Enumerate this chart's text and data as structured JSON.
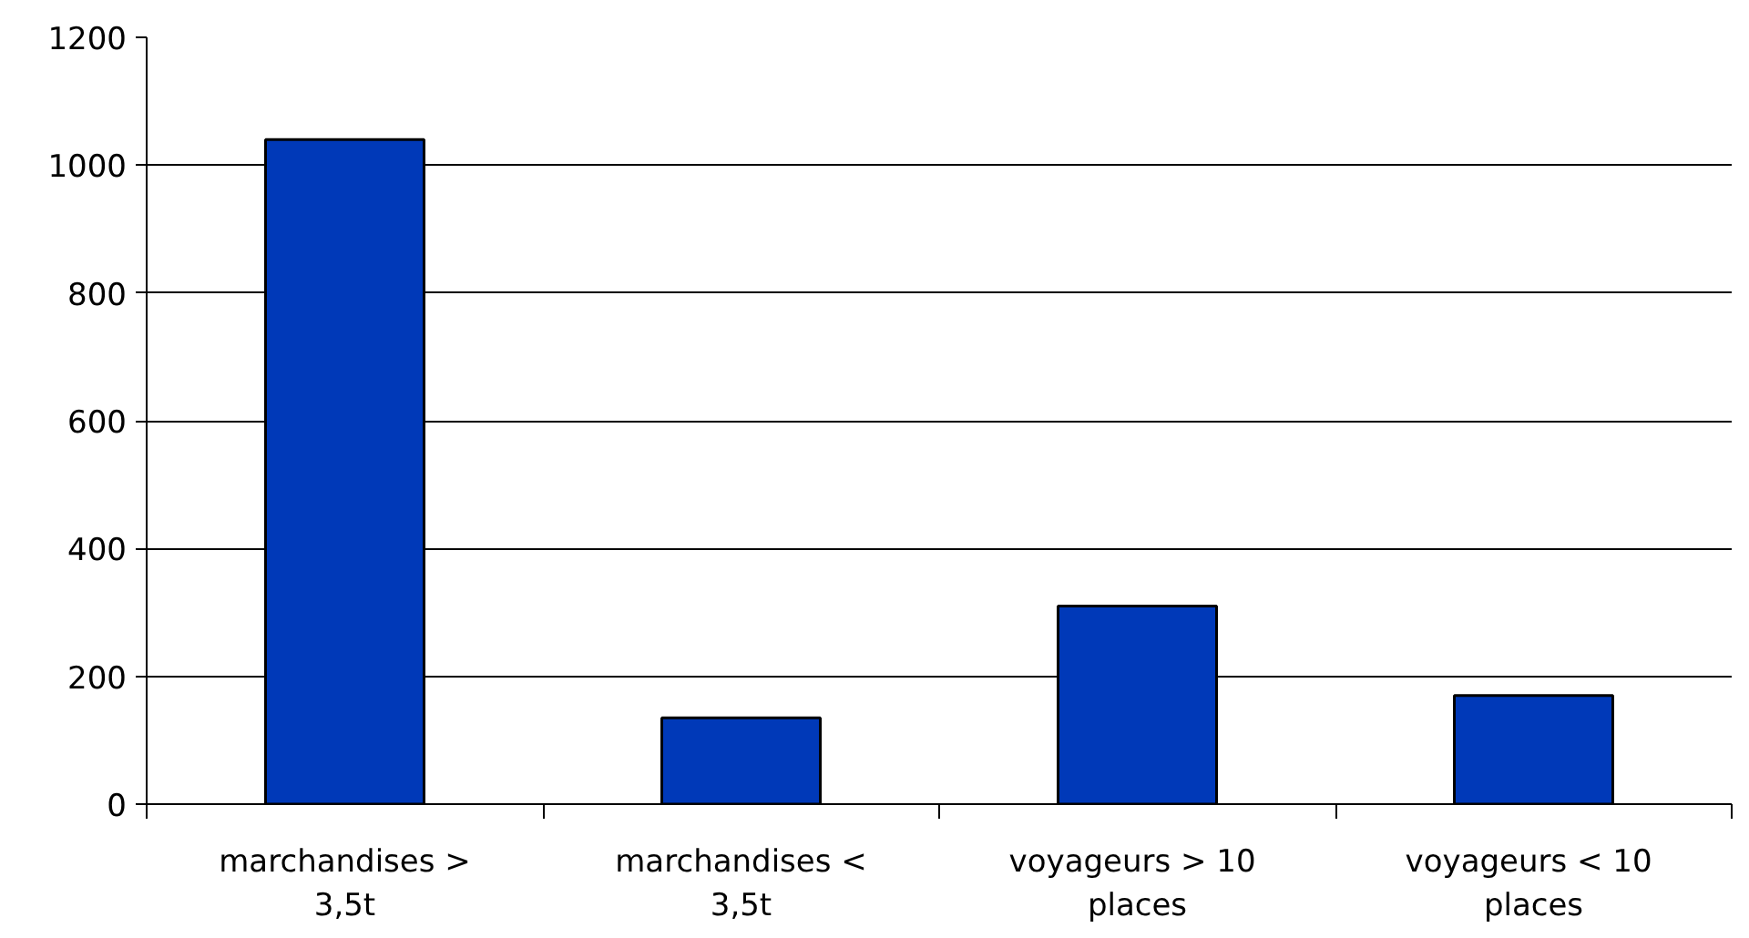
{
  "chart_data": {
    "type": "bar",
    "categories": [
      "marchandises >\n3,5t",
      "marchandises <\n3,5t",
      "voyageurs  > 10\nplaces",
      "voyageurs  < 10\nplaces"
    ],
    "values": [
      1040,
      135,
      310,
      170
    ],
    "color": "#0039b8",
    "ylim": [
      0,
      1200
    ],
    "yticks": [
      0,
      200,
      400,
      600,
      800,
      1000,
      1200
    ],
    "grid": "y"
  }
}
